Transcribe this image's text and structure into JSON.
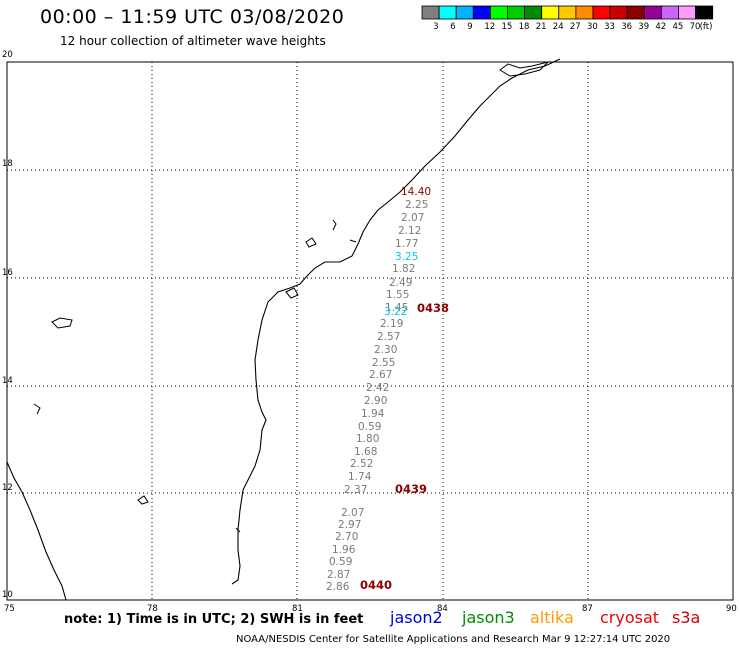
{
  "header": {
    "title": "00:00 – 11:59 UTC 03/08/2020",
    "subtitle": "12 hour collection of altimeter wave heights"
  },
  "legend": {
    "colors": [
      "#7f7f7f",
      "#00ffff",
      "#00b4ff",
      "#0000ff",
      "#00ff00",
      "#00cc00",
      "#008b00",
      "#ffff00",
      "#ffc800",
      "#ff8c00",
      "#ff0000",
      "#cc0000",
      "#8b0000",
      "#990099",
      "#cc66ff",
      "#ff99ff",
      "#000000"
    ],
    "labels": [
      "3",
      "6",
      "9",
      "12",
      "15",
      "18",
      "21",
      "24",
      "27",
      "30",
      "33",
      "36",
      "39",
      "42",
      "45",
      "70",
      "(ft)"
    ]
  },
  "axes": {
    "lat_ticks": [
      "20",
      "18",
      "16",
      "14",
      "12",
      "10"
    ],
    "lon_ticks": [
      "75",
      "78",
      "81",
      "84",
      "87",
      "90"
    ]
  },
  "observations": [
    {
      "value": "2.25",
      "color": "#7a7a7a"
    },
    {
      "value": "2.07",
      "color": "#7a7a7a"
    },
    {
      "value": "2.12",
      "color": "#7a7a7a"
    },
    {
      "value": "1.77",
      "color": "#7a7a7a"
    },
    {
      "value": "3.25",
      "color": "#00c8e6"
    },
    {
      "value": "1.82",
      "color": "#7a7a7a"
    },
    {
      "value": "2.49",
      "color": "#7a7a7a"
    },
    {
      "value": "1.55",
      "color": "#7a7a7a"
    },
    {
      "value": "1.45",
      "color": "#7a7a7a"
    },
    {
      "value": "3.22",
      "color": "#00c8e6"
    },
    {
      "value": "2.19",
      "color": "#7a7a7a"
    },
    {
      "value": "2.57",
      "color": "#7a7a7a"
    },
    {
      "value": "2.30",
      "color": "#7a7a7a"
    },
    {
      "value": "2.55",
      "color": "#7a7a7a"
    },
    {
      "value": "2.67",
      "color": "#7a7a7a"
    },
    {
      "value": "2.42",
      "color": "#7a7a7a"
    },
    {
      "value": "2.90",
      "color": "#7a7a7a"
    },
    {
      "value": "1.94",
      "color": "#7a7a7a"
    },
    {
      "value": "0.59",
      "color": "#7a7a7a"
    },
    {
      "value": "1.80",
      "color": "#7a7a7a"
    },
    {
      "value": "1.68",
      "color": "#7a7a7a"
    },
    {
      "value": "2.52",
      "color": "#7a7a7a"
    },
    {
      "value": "1.74",
      "color": "#7a7a7a"
    },
    {
      "value": "2.37",
      "color": "#7a7a7a"
    },
    {
      "value": "2.07",
      "color": "#7a7a7a"
    },
    {
      "value": "2.97",
      "color": "#7a7a7a"
    },
    {
      "value": "2.70",
      "color": "#7a7a7a"
    },
    {
      "value": "1.96",
      "color": "#7a7a7a"
    },
    {
      "value": "0.59",
      "color": "#7a7a7a"
    },
    {
      "value": "2.87",
      "color": "#7a7a7a"
    },
    {
      "value": "2.86",
      "color": "#7a7a7a"
    }
  ],
  "highlight": {
    "value": "14.40",
    "color": "#8b0000"
  },
  "passes": [
    {
      "label": "0438",
      "color": "#8b0000"
    },
    {
      "label": "0439",
      "color": "#8b0000"
    },
    {
      "label": "0440",
      "color": "#8b0000"
    }
  ],
  "footer": {
    "note": "note:  1) Time is in UTC;  2) SWH is in feet",
    "credit": "NOAA/NESDIS Center for Satellite Applications and Research    Mar  9 12:27:14 UTC 2020",
    "satellites": [
      {
        "name": "jason2",
        "color": "#0000dd"
      },
      {
        "name": "jason3",
        "color": "#008b00"
      },
      {
        "name": "altika",
        "color": "#ff9900"
      },
      {
        "name": "cryosat",
        "color": "#ee0000"
      },
      {
        "name": "s3a",
        "color": "#cc0000"
      }
    ]
  }
}
